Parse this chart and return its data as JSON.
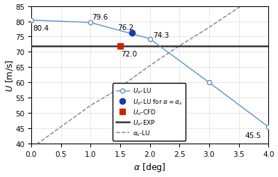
{
  "xlim": [
    0,
    4
  ],
  "ylim": [
    40,
    85
  ],
  "xticks": [
    0,
    0.5,
    1.0,
    1.5,
    2.0,
    2.5,
    3.0,
    3.5,
    4.0
  ],
  "yticks": [
    40,
    45,
    50,
    55,
    60,
    65,
    70,
    75,
    80,
    85
  ],
  "lu_line_x": [
    0,
    1.0,
    2.0,
    3.0,
    4.0
  ],
  "lu_line_y": [
    80.4,
    79.6,
    74.3,
    60.0,
    45.5
  ],
  "lu_filled_x": 1.7,
  "lu_filled_y": 76.2,
  "cfd_x": 1.5,
  "cfd_y": 72.0,
  "exp_y": 72.0,
  "alpha_s_x": [
    -0.5,
    0.0,
    0.5,
    1.0,
    1.35,
    1.5,
    2.0,
    2.5,
    3.0,
    3.5,
    4.2
  ],
  "alpha_s_y": [
    34.0,
    38.5,
    45.5,
    52.5,
    56.5,
    58.5,
    65.5,
    72.0,
    78.0,
    84.5,
    92.0
  ],
  "lu_color": "#5b8fc9",
  "lu_filled_color": "#1a3aad",
  "cfd_color": "#cc2200",
  "exp_color": "#333333",
  "alpha_s_color": "#888888",
  "ann_fontsize": 7.5,
  "tick_fontsize": 7.5,
  "label_fontsize": 9,
  "legend_fontsize": 6.5
}
